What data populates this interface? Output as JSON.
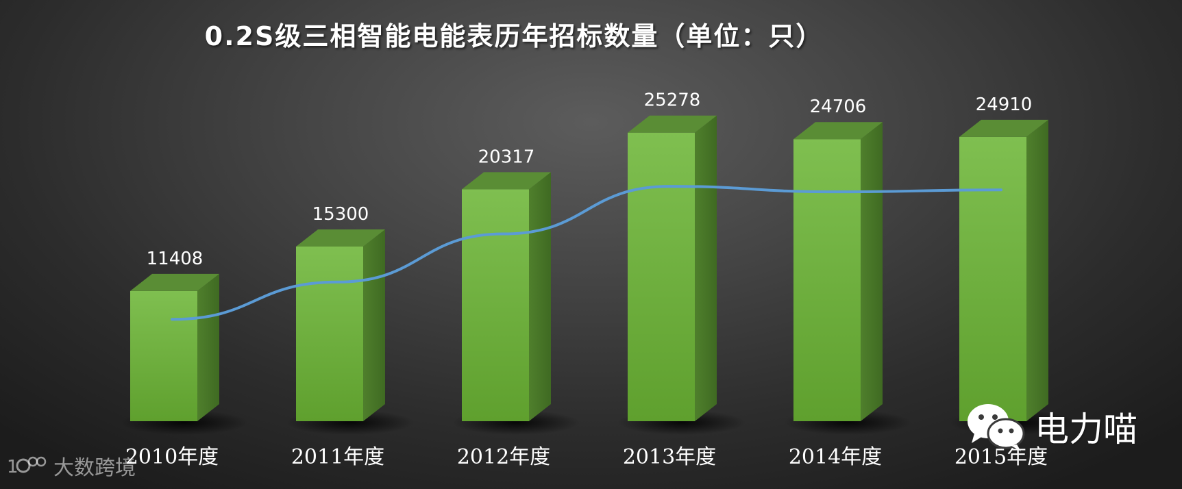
{
  "chart_data": {
    "type": "bar",
    "title": "0.2S级三相智能电能表历年招标数量（单位：只）",
    "categories": [
      "2010年度",
      "2011年度",
      "2012年度",
      "2013年度",
      "2014年度",
      "2015年度"
    ],
    "values": [
      11408,
      15300,
      20317,
      25278,
      24706,
      24910
    ],
    "overlay_line_values": [
      11408,
      15300,
      20317,
      25278,
      24706,
      24910
    ],
    "ylim": [
      0,
      30000
    ],
    "xlabel": "",
    "ylabel": "",
    "grid": false,
    "legend": "none",
    "bar_color": "#6aa93a",
    "line_color": "#5b9bd5"
  },
  "watermarks": {
    "left_text": "大数跨境",
    "right_text": "电力喵",
    "right_icon": "wechat-icon"
  }
}
